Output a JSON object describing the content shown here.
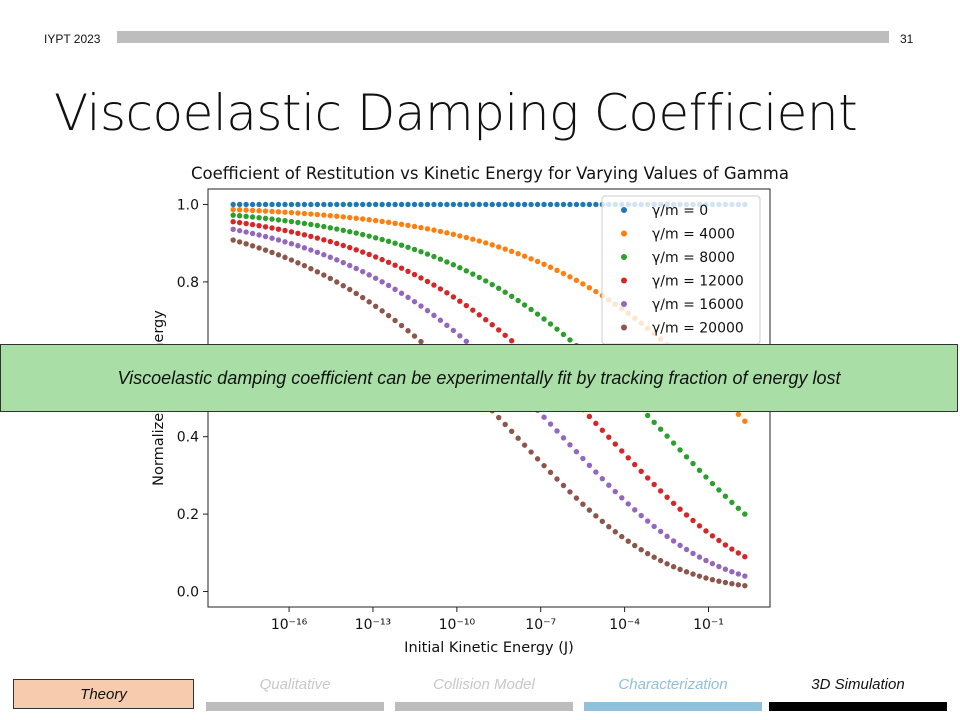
{
  "header": {
    "event": "IYPT 2023",
    "page": "31"
  },
  "title": "Viscoelastic Damping Coefficient",
  "callout": "Viscoelastic damping coefficient can be experimentally fit by tracking fraction of energy lost",
  "footer": {
    "theory": "Theory",
    "sections": [
      {
        "label": "Qualitative",
        "text_color": "#c8c8c8",
        "bar_color": "#bdbdbd"
      },
      {
        "label": "Collision Model",
        "text_color": "#c8c8c8",
        "bar_color": "#bdbdbd"
      },
      {
        "label": "Characterization",
        "text_color": "#8fc1da",
        "bar_color": "#8fc1da"
      },
      {
        "label": "3D Simulation",
        "text_color": "#111111",
        "bar_color": "#000000"
      }
    ]
  },
  "chart_data": {
    "type": "scatter",
    "title": "Coefficient of Restitution vs Kinetic Energy for Varying Values of Gamma",
    "xlabel": "Initial Kinetic Energy (J)",
    "ylabel": "Normalized Final Energy",
    "x_scale": "log",
    "x_log10_range": [
      -18.9,
      1.2
    ],
    "ylim": [
      -0.04,
      1.04
    ],
    "x_ticks": [
      {
        "log10": -16,
        "label": "10⁻¹⁶"
      },
      {
        "log10": -13,
        "label": "10⁻¹³"
      },
      {
        "log10": -10,
        "label": "10⁻¹⁰"
      },
      {
        "log10": -7,
        "label": "10⁻⁷"
      },
      {
        "log10": -4,
        "label": "10⁻⁴"
      },
      {
        "log10": -1,
        "label": "10⁻¹"
      }
    ],
    "y_ticks": [
      "0.0",
      "0.2",
      "0.4",
      "0.6",
      "0.8",
      "1.0"
    ],
    "x_log10_points": {
      "start": -18,
      "end": 0.3,
      "count": 80
    },
    "legend_position": "top-right",
    "series": [
      {
        "name": "γ/m = 0",
        "color": "#1f77b4",
        "gamma": 0,
        "end_value": 1.0
      },
      {
        "name": "γ/m = 4000",
        "color": "#ff7f0e",
        "gamma": 4000,
        "end_value": 0.44
      },
      {
        "name": "γ/m = 8000",
        "color": "#2ca02c",
        "gamma": 8000,
        "end_value": 0.2
      },
      {
        "name": "γ/m = 12000",
        "color": "#d62728",
        "gamma": 12000,
        "end_value": 0.09
      },
      {
        "name": "γ/m = 16000",
        "color": "#9467bd",
        "gamma": 16000,
        "end_value": 0.04
      },
      {
        "name": "γ/m = 20000",
        "color": "#8c564b",
        "gamma": 20000,
        "end_value": 0.015
      }
    ]
  }
}
